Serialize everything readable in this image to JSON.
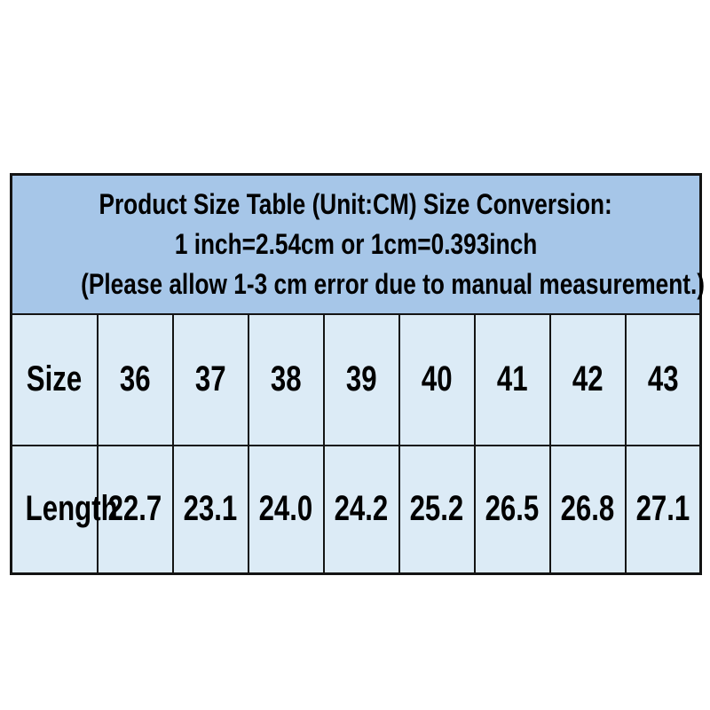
{
  "chart_data": {
    "type": "table",
    "title_lines": [
      "Product Size Table (Unit:CM) Size Conversion:",
      "1 inch=2.54cm or 1cm=0.393inch",
      "(Please allow 1-3 cm error due to manual measurement.)"
    ],
    "row_labels": [
      "Size",
      "Length"
    ],
    "categories": [
      "36",
      "37",
      "38",
      "39",
      "40",
      "41",
      "42",
      "43"
    ],
    "series": [
      {
        "name": "Length",
        "values": [
          22.7,
          23.1,
          24.0,
          24.2,
          25.2,
          26.5,
          26.8,
          27.1
        ]
      }
    ],
    "cells": {
      "sizes": [
        "36",
        "37",
        "38",
        "39",
        "40",
        "41",
        "42",
        "43"
      ],
      "lengths": [
        "22.7",
        "23.1",
        "24.0",
        "24.2",
        "25.2",
        "26.5",
        "26.8",
        "27.1"
      ]
    }
  },
  "colors": {
    "header_background": "#a6c6e8",
    "cell_background": "#dcebf6",
    "border": "#141414",
    "text": "#000000",
    "page_background": "#ffffff"
  }
}
